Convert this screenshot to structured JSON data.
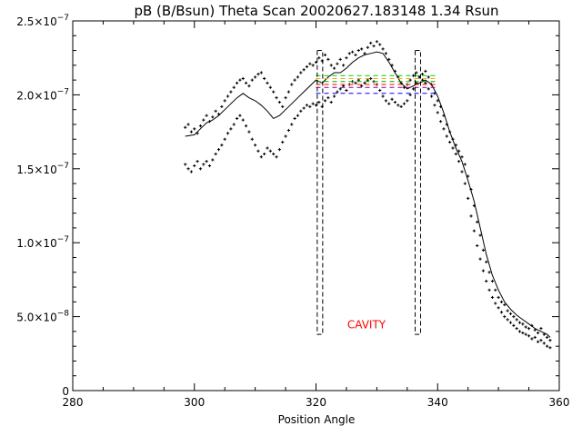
{
  "chart_data": {
    "type": "scatter",
    "title": "pB (B/Bsun) Theta Scan 20020627.183148 1.34 Rsun",
    "xlabel": "Position Angle",
    "ylabel": "",
    "xlim": [
      280,
      360
    ],
    "ylim": [
      0,
      2.5e-07
    ],
    "grid": false,
    "legend": "none",
    "x_ticks": [
      {
        "value": 280,
        "label": "280"
      },
      {
        "value": 300,
        "label": "300"
      },
      {
        "value": 320,
        "label": "320"
      },
      {
        "value": 340,
        "label": "340"
      },
      {
        "value": 360,
        "label": "360"
      }
    ],
    "y_ticks": [
      {
        "value": 0,
        "mant": "0",
        "exp": ""
      },
      {
        "value": 5e-08,
        "mant": "5.0×10",
        "exp": "−8"
      },
      {
        "value": 1e-07,
        "mant": "1.0×10",
        "exp": "−7"
      },
      {
        "value": 1.5e-07,
        "mant": "1.5×10",
        "exp": "−7"
      },
      {
        "value": 2e-07,
        "mant": "2.0×10",
        "exp": "−7"
      },
      {
        "value": 2.5e-07,
        "mant": "2.5×10",
        "exp": "−7"
      }
    ],
    "series": [
      {
        "style": "points",
        "x": [
          298.5,
          299,
          299.5,
          300,
          300.5,
          301,
          301.5,
          302,
          302.5,
          303,
          303.5,
          304,
          304.5,
          305,
          305.5,
          306,
          306.5,
          307,
          307.5,
          308,
          308.5,
          309,
          309.5,
          310,
          310.5,
          311,
          311.5,
          312,
          312.5,
          313,
          313.5,
          314,
          314.5,
          315,
          315.5,
          316,
          316.5,
          317,
          317.5,
          318,
          318.5,
          319,
          319.5,
          320,
          320.5,
          321,
          321.5,
          322,
          322.5,
          323,
          323.5,
          324,
          324.5,
          325,
          325.5,
          326,
          326.5,
          327,
          327.5,
          328,
          328.5,
          329,
          329.5,
          330,
          330.5,
          331,
          331.5,
          332,
          332.5,
          333,
          333.5,
          334,
          334.5,
          335,
          335.5,
          336,
          336.5,
          337,
          337.5,
          338,
          338.5,
          339,
          339.5,
          340,
          340.5,
          341,
          341.5,
          342,
          342.5,
          343,
          343.5,
          344,
          344.5,
          345,
          345.5,
          346,
          346.5,
          347,
          347.5,
          348,
          348.5,
          349,
          349.5,
          350,
          350.5,
          351,
          351.5,
          352,
          352.5,
          353,
          353.5,
          354,
          354.5,
          355,
          355.5,
          356,
          356.5,
          357,
          357.5,
          358,
          358.5
        ],
        "y": [
          1.78e-07,
          1.8e-07,
          1.75e-07,
          1.77e-07,
          1.74e-07,
          1.79e-07,
          1.83e-07,
          1.86e-07,
          1.82e-07,
          1.85e-07,
          1.89e-07,
          1.87e-07,
          1.92e-07,
          1.96e-07,
          1.99e-07,
          2.02e-07,
          2.05e-07,
          2.08e-07,
          2.1e-07,
          2.11e-07,
          2.08e-07,
          2.06e-07,
          2.1e-07,
          2.12e-07,
          2.14e-07,
          2.15e-07,
          2.11e-07,
          2.08e-07,
          2.05e-07,
          2.02e-07,
          1.98e-07,
          1.95e-07,
          1.92e-07,
          1.98e-07,
          2.02e-07,
          2.07e-07,
          2.1e-07,
          2.12e-07,
          2.15e-07,
          2.17e-07,
          2.19e-07,
          2.21e-07,
          2.2e-07,
          2.22e-07,
          2.25e-07,
          2.23e-07,
          2.27e-07,
          2.24e-07,
          2.2e-07,
          2.18e-07,
          2.21e-07,
          2.24e-07,
          2.2e-07,
          2.25e-07,
          2.28e-07,
          2.29e-07,
          2.27e-07,
          2.3e-07,
          2.31e-07,
          2.28e-07,
          2.32e-07,
          2.35e-07,
          2.33e-07,
          2.36e-07,
          2.34e-07,
          2.31e-07,
          2.28e-07,
          2.24e-07,
          2.2e-07,
          2.16e-07,
          2.12e-07,
          2.08e-07,
          2.05e-07,
          2.07e-07,
          2.1e-07,
          2.13e-07,
          2.15e-07,
          2.12e-07,
          2.14e-07,
          2.16e-07,
          2.12e-07,
          2.07e-07,
          2.01e-07,
          1.96e-07,
          1.92e-07,
          1.86e-07,
          1.8e-07,
          1.75e-07,
          1.7e-07,
          1.66e-07,
          1.62e-07,
          1.58e-07,
          1.53e-07,
          1.45e-07,
          1.36e-07,
          1.25e-07,
          1.14e-07,
          1.05e-07,
          9.5e-08,
          8.7e-08,
          8e-08,
          7.4e-08,
          6.8e-08,
          6.3e-08,
          6e-08,
          5.8e-08,
          5.4e-08,
          5.2e-08,
          5e-08,
          4.8e-08,
          4.6e-08,
          4.5e-08,
          4.3e-08,
          4.2e-08,
          4.4e-08,
          4.1e-08,
          3.9e-08,
          4.2e-08,
          3.8e-08,
          3.6e-08,
          3.4e-08
        ]
      },
      {
        "style": "points",
        "x": [
          298.5,
          299,
          299.5,
          300,
          300.5,
          301,
          301.5,
          302,
          302.5,
          303,
          303.5,
          304,
          304.5,
          305,
          305.5,
          306,
          306.5,
          307,
          307.5,
          308,
          308.5,
          309,
          309.5,
          310,
          310.5,
          311,
          311.5,
          312,
          312.5,
          313,
          313.5,
          314,
          314.5,
          315,
          315.5,
          316,
          316.5,
          317,
          317.5,
          318,
          318.5,
          319,
          319.5,
          320,
          320.5,
          321,
          321.5,
          322,
          322.5,
          323,
          323.5,
          324,
          324.5,
          325,
          325.5,
          326,
          326.5,
          327,
          327.5,
          328,
          328.5,
          329,
          329.5,
          330,
          330.5,
          331,
          331.5,
          332,
          332.5,
          333,
          333.5,
          334,
          334.5,
          335,
          335.5,
          336,
          336.5,
          337,
          337.5,
          338,
          338.5,
          339,
          339.5,
          340,
          340.5,
          341,
          341.5,
          342,
          342.5,
          343,
          343.5,
          344,
          344.5,
          345,
          345.5,
          346,
          346.5,
          347,
          347.5,
          348,
          348.5,
          349,
          349.5,
          350,
          350.5,
          351,
          351.5,
          352,
          352.5,
          353,
          353.5,
          354,
          354.5,
          355,
          355.5,
          356,
          356.5,
          357,
          357.5,
          358,
          358.5
        ],
        "y": [
          1.53e-07,
          1.5e-07,
          1.48e-07,
          1.52e-07,
          1.55e-07,
          1.5e-07,
          1.53e-07,
          1.55e-07,
          1.52e-07,
          1.56e-07,
          1.6e-07,
          1.63e-07,
          1.66e-07,
          1.7e-07,
          1.74e-07,
          1.77e-07,
          1.8e-07,
          1.84e-07,
          1.86e-07,
          1.83e-07,
          1.79e-07,
          1.75e-07,
          1.7e-07,
          1.66e-07,
          1.62e-07,
          1.58e-07,
          1.6e-07,
          1.64e-07,
          1.62e-07,
          1.6e-07,
          1.58e-07,
          1.63e-07,
          1.68e-07,
          1.72e-07,
          1.76e-07,
          1.8e-07,
          1.84e-07,
          1.86e-07,
          1.89e-07,
          1.91e-07,
          1.93e-07,
          1.92e-07,
          1.94e-07,
          1.93e-07,
          1.95e-07,
          1.92e-07,
          1.96e-07,
          1.98e-07,
          1.95e-07,
          1.99e-07,
          2.02e-07,
          2.04e-07,
          2.06e-07,
          2.03e-07,
          2.07e-07,
          2.09e-07,
          2.08e-07,
          2.1e-07,
          2.06e-07,
          2.08e-07,
          2.1e-07,
          2.11e-07,
          2.09e-07,
          2.07e-07,
          2.03e-07,
          1.99e-07,
          1.96e-07,
          1.94e-07,
          1.97e-07,
          1.95e-07,
          1.93e-07,
          1.92e-07,
          1.94e-07,
          1.96e-07,
          2e-07,
          2.04e-07,
          2.08e-07,
          2.12e-07,
          2.1e-07,
          2.08e-07,
          2.04e-07,
          1.99e-07,
          1.93e-07,
          1.88e-07,
          1.82e-07,
          1.77e-07,
          1.72e-07,
          1.68e-07,
          1.64e-07,
          1.6e-07,
          1.55e-07,
          1.48e-07,
          1.4e-07,
          1.3e-07,
          1.18e-07,
          1.08e-07,
          9.8e-08,
          8.9e-08,
          8.1e-08,
          7.4e-08,
          6.8e-08,
          6.3e-08,
          5.9e-08,
          5.6e-08,
          5.3e-08,
          5e-08,
          4.8e-08,
          4.6e-08,
          4.4e-08,
          4.2e-08,
          4e-08,
          3.9e-08,
          3.8e-08,
          3.7e-08,
          3.5e-08,
          3.6e-08,
          3.3e-08,
          3.4e-08,
          3.2e-08,
          3e-08,
          2.9e-08
        ]
      },
      {
        "style": "line",
        "x": [
          298.5,
          300,
          301,
          302,
          303,
          304,
          305,
          306,
          307,
          308,
          309,
          310,
          311,
          312,
          313,
          314,
          315,
          316,
          317,
          318,
          319,
          320,
          321,
          322,
          323,
          324,
          325,
          326,
          327,
          328,
          329,
          330,
          331,
          332,
          333,
          334,
          335,
          336,
          337,
          338,
          339,
          340,
          341,
          342,
          343,
          344,
          345,
          346,
          347,
          348,
          349,
          350,
          351,
          352,
          353,
          354,
          355,
          356,
          357,
          358,
          358.5
        ],
        "y": [
          1.72e-07,
          1.73e-07,
          1.77e-07,
          1.81e-07,
          1.83e-07,
          1.86e-07,
          1.9e-07,
          1.94e-07,
          1.98e-07,
          2.01e-07,
          1.98e-07,
          1.96e-07,
          1.93e-07,
          1.89e-07,
          1.84e-07,
          1.86e-07,
          1.9e-07,
          1.94e-07,
          1.98e-07,
          2.02e-07,
          2.06e-07,
          2.1e-07,
          2.08e-07,
          2.12e-07,
          2.15e-07,
          2.15e-07,
          2.18e-07,
          2.22e-07,
          2.25e-07,
          2.27e-07,
          2.28e-07,
          2.29e-07,
          2.28e-07,
          2.22e-07,
          2.15e-07,
          2.08e-07,
          2.04e-07,
          2.06e-07,
          2.08e-07,
          2.1e-07,
          2.07e-07,
          1.99e-07,
          1.88e-07,
          1.75e-07,
          1.64e-07,
          1.55e-07,
          1.42e-07,
          1.28e-07,
          1.1e-07,
          9.2e-08,
          7.8e-08,
          6.8e-08,
          6e-08,
          5.5e-08,
          5.1e-08,
          4.8e-08,
          4.5e-08,
          4.2e-08,
          4e-08,
          3.8e-08,
          3.6e-08
        ]
      },
      {
        "style": "dashed-level",
        "color": "#00cc00",
        "x": [
          320,
          340
        ],
        "y": [
          2.13e-07,
          2.13e-07
        ]
      },
      {
        "style": "dashed-level",
        "color": "#ffa500",
        "x": [
          320,
          340
        ],
        "y": [
          2.11e-07,
          2.11e-07
        ]
      },
      {
        "style": "dashed-level",
        "color": "#00aa00",
        "x": [
          320,
          340
        ],
        "y": [
          2.09e-07,
          2.09e-07
        ]
      },
      {
        "style": "dashed-level",
        "color": "#ff0000",
        "x": [
          320,
          340
        ],
        "y": [
          2.07e-07,
          2.07e-07
        ]
      },
      {
        "style": "dashed-level",
        "color": "#800080",
        "x": [
          320,
          340
        ],
        "y": [
          2.05e-07,
          2.05e-07
        ]
      },
      {
        "style": "dashed-level",
        "color": "#0000ff",
        "x": [
          320,
          340
        ],
        "y": [
          2.01e-07,
          2.01e-07
        ]
      }
    ],
    "boxes": [
      {
        "x0": 320.2,
        "x1": 321.1,
        "y0": 3.8e-08,
        "y1": 2.3e-07
      },
      {
        "x0": 336.3,
        "x1": 337.2,
        "y0": 3.8e-08,
        "y1": 2.3e-07
      }
    ],
    "annotations": [
      {
        "text": "CAVITY",
        "x": 328.3,
        "y": 4.2e-08,
        "color": "#ff0000"
      }
    ]
  }
}
